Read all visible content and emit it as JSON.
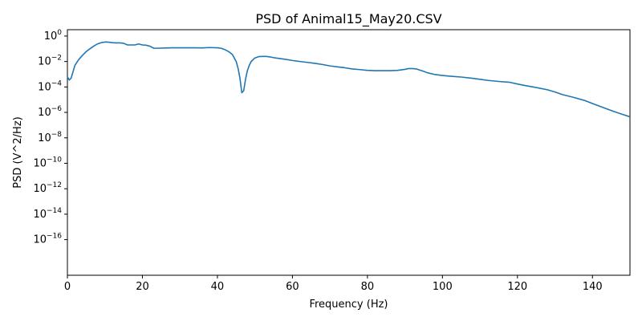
{
  "chart_data": {
    "type": "line",
    "title": "PSD of Animal15_May20.CSV",
    "xlabel": "Frequency (Hz)",
    "ylabel": "PSD (V^2/Hz)",
    "xlim": [
      0,
      150
    ],
    "ylim_log10": [
      -18.8,
      0.5
    ],
    "yscale": "log",
    "grid": false,
    "xticks": [
      {
        "value": 0,
        "label": "0"
      },
      {
        "value": 20,
        "label": "20"
      },
      {
        "value": 40,
        "label": "40"
      },
      {
        "value": 60,
        "label": "60"
      },
      {
        "value": 80,
        "label": "80"
      },
      {
        "value": 100,
        "label": "100"
      },
      {
        "value": 120,
        "label": "120"
      },
      {
        "value": 140,
        "label": "140"
      }
    ],
    "yticks": [
      {
        "exponent": 0,
        "base": "10",
        "exp": "0"
      },
      {
        "exponent": -2,
        "base": "10",
        "exp": "−2"
      },
      {
        "exponent": -4,
        "base": "10",
        "exp": "−4"
      },
      {
        "exponent": -6,
        "base": "10",
        "exp": "−6"
      },
      {
        "exponent": -8,
        "base": "10",
        "exp": "−8"
      },
      {
        "exponent": -10,
        "base": "10",
        "exp": "−10"
      },
      {
        "exponent": -12,
        "base": "10",
        "exp": "−12"
      },
      {
        "exponent": -14,
        "base": "10",
        "exp": "−14"
      },
      {
        "exponent": -16,
        "base": "10",
        "exp": "−16"
      }
    ],
    "series": [
      {
        "color": "#1f77b4",
        "x": [
          0,
          0.5,
          1,
          2,
          3,
          4,
          5,
          6,
          7,
          8,
          9,
          10,
          11,
          12,
          13,
          14,
          15,
          16,
          17,
          18,
          19,
          20,
          21,
          22,
          23,
          24,
          26,
          28,
          30,
          32,
          34,
          36,
          38,
          40,
          41,
          42,
          43,
          44,
          45,
          45.5,
          46,
          46.5,
          47,
          47.5,
          48,
          48.5,
          49,
          50,
          51,
          52,
          53,
          54,
          55,
          56,
          58,
          60,
          62,
          64,
          66,
          68,
          70,
          72,
          74,
          76,
          78,
          80,
          82,
          84,
          86,
          88,
          90,
          91,
          92,
          93,
          94,
          95,
          96,
          98,
          100,
          102,
          105,
          108,
          110,
          112,
          115,
          118,
          120,
          122,
          125,
          128,
          130,
          132,
          135,
          138,
          140,
          142,
          144,
          146,
          148,
          150
        ],
        "y": [
          0.00063,
          0.00035,
          0.0005,
          0.005,
          0.014,
          0.03,
          0.06,
          0.1,
          0.16,
          0.24,
          0.3,
          0.34,
          0.33,
          0.3,
          0.29,
          0.29,
          0.27,
          0.2,
          0.2,
          0.2,
          0.24,
          0.2,
          0.19,
          0.16,
          0.11,
          0.11,
          0.115,
          0.12,
          0.12,
          0.12,
          0.12,
          0.118,
          0.125,
          0.12,
          0.11,
          0.085,
          0.06,
          0.035,
          0.01,
          0.003,
          0.0005,
          3.5e-05,
          5e-05,
          0.0004,
          0.002,
          0.005,
          0.01,
          0.019,
          0.024,
          0.025,
          0.025,
          0.023,
          0.02,
          0.018,
          0.015,
          0.012,
          0.01,
          0.0085,
          0.0072,
          0.0058,
          0.0045,
          0.0038,
          0.0032,
          0.0026,
          0.0023,
          0.002,
          0.0019,
          0.0019,
          0.0019,
          0.002,
          0.0024,
          0.0028,
          0.0028,
          0.0026,
          0.0021,
          0.0017,
          0.0013,
          0.00095,
          0.0008,
          0.0007,
          0.0006,
          0.00048,
          0.0004,
          0.00033,
          0.00027,
          0.00023,
          0.00017,
          0.00013,
          9e-05,
          6e-05,
          4e-05,
          2.5e-05,
          1.5e-05,
          8.5e-06,
          5e-06,
          3e-06,
          1.8e-06,
          1.1e-06,
          7e-07,
          4.5e-07
        ]
      }
    ]
  }
}
